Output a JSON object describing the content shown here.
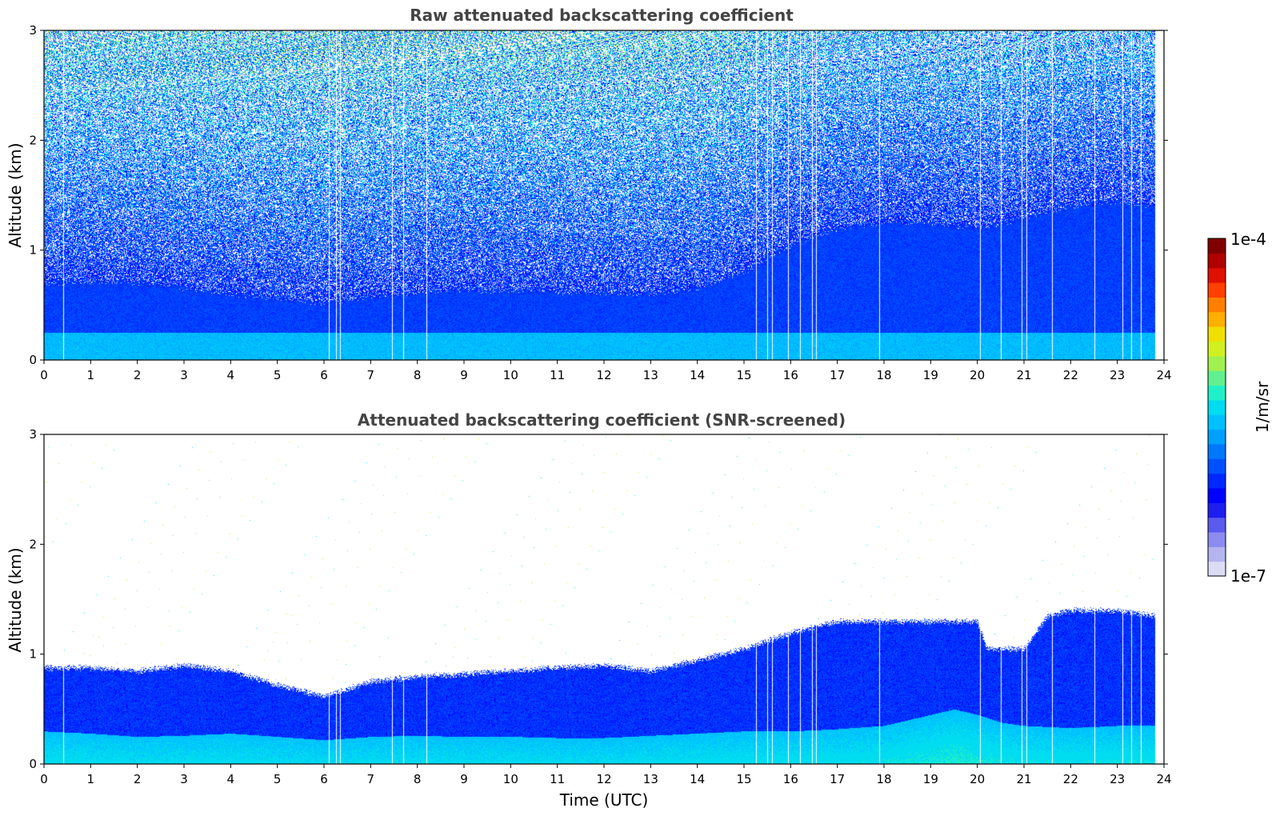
{
  "chart_data": [
    {
      "type": "heatmap",
      "title": "Raw attenuated backscattering coefficient",
      "xlabel": "",
      "ylabel": "Altitude (km)",
      "xlim": [
        0,
        24
      ],
      "ylim": [
        0,
        3
      ],
      "xticks": [
        "0",
        "1",
        "2",
        "3",
        "4",
        "5",
        "6",
        "7",
        "8",
        "9",
        "10",
        "11",
        "12",
        "13",
        "14",
        "15",
        "16",
        "17",
        "18",
        "19",
        "20",
        "21",
        "22",
        "23",
        "24"
      ],
      "yticks": [
        "0",
        "1",
        "2",
        "3"
      ],
      "screened": false,
      "data_end_hour": 23.8,
      "boundary_layer_top_km": {
        "x": [
          0,
          1,
          2,
          3,
          4,
          5,
          6,
          7,
          8,
          9,
          10,
          11,
          12,
          13,
          14,
          15,
          16,
          17,
          18,
          19,
          20,
          21,
          22,
          23,
          23.8
        ],
        "y": [
          0.7,
          0.72,
          0.7,
          0.66,
          0.6,
          0.56,
          0.52,
          0.58,
          0.62,
          0.64,
          0.64,
          0.62,
          0.62,
          0.6,
          0.66,
          0.8,
          1.05,
          1.2,
          1.25,
          1.25,
          1.2,
          1.3,
          1.4,
          1.45,
          1.4
        ]
      },
      "gaps_hours": [
        0.42,
        6.1,
        6.25,
        6.35,
        7.45,
        7.7,
        8.2,
        15.25,
        15.5,
        15.6,
        15.95,
        16.2,
        16.45,
        16.55,
        17.9,
        20.05,
        20.5,
        20.95,
        21.05,
        21.6,
        22.5,
        23.1,
        23.3,
        23.5
      ]
    },
    {
      "type": "heatmap",
      "title": "Attenuated backscattering coefficient (SNR-screened)",
      "xlabel": "Time (UTC)",
      "ylabel": "Altitude (km)",
      "xlim": [
        0,
        24
      ],
      "ylim": [
        0,
        3
      ],
      "xticks": [
        "0",
        "1",
        "2",
        "3",
        "4",
        "5",
        "6",
        "7",
        "8",
        "9",
        "10",
        "11",
        "12",
        "13",
        "14",
        "15",
        "16",
        "17",
        "18",
        "19",
        "20",
        "21",
        "22",
        "23",
        "24"
      ],
      "yticks": [
        "0",
        "1",
        "2",
        "3"
      ],
      "screened": true,
      "data_end_hour": 23.8,
      "layer_top_km": {
        "x": [
          0,
          1,
          2,
          3,
          4,
          5,
          6,
          7,
          8,
          9,
          10,
          11,
          12,
          13,
          14,
          15,
          16,
          17,
          18,
          19,
          20,
          20.2,
          21,
          21.5,
          22,
          23,
          23.8
        ],
        "y": [
          0.88,
          0.88,
          0.85,
          0.9,
          0.85,
          0.72,
          0.62,
          0.75,
          0.8,
          0.82,
          0.85,
          0.88,
          0.9,
          0.85,
          0.95,
          1.05,
          1.2,
          1.3,
          1.3,
          1.3,
          1.3,
          1.05,
          1.05,
          1.35,
          1.4,
          1.4,
          1.35
        ]
      },
      "aerosol_top_km": {
        "x": [
          0,
          1,
          2,
          3,
          4,
          5,
          6,
          7,
          8,
          9,
          10,
          11,
          12,
          13,
          14,
          15,
          16,
          17,
          18,
          19,
          19.5,
          20,
          20.5,
          21,
          22,
          23,
          23.8
        ],
        "y": [
          0.3,
          0.28,
          0.25,
          0.26,
          0.28,
          0.25,
          0.22,
          0.25,
          0.26,
          0.25,
          0.25,
          0.24,
          0.24,
          0.26,
          0.28,
          0.3,
          0.3,
          0.32,
          0.35,
          0.45,
          0.5,
          0.45,
          0.38,
          0.35,
          0.33,
          0.35,
          0.35
        ]
      },
      "gaps_hours": [
        0.42,
        6.1,
        6.25,
        6.35,
        7.45,
        7.7,
        8.2,
        15.25,
        15.5,
        15.6,
        15.95,
        16.2,
        16.45,
        16.55,
        17.9,
        20.05,
        20.5,
        20.95,
        21.05,
        21.6,
        22.5,
        23.1,
        23.3,
        23.5
      ]
    }
  ],
  "colorbar": {
    "max_label": "1e-4",
    "min_label": "1e-7",
    "label": "1/m/sr",
    "colors": [
      "#dcdcf5",
      "#b4b4ef",
      "#8c8cf0",
      "#5a5aee",
      "#1e1ef0",
      "#0000ff",
      "#0028ff",
      "#0050ff",
      "#0078ff",
      "#00a0ff",
      "#00c0ff",
      "#00dcf0",
      "#20f0c8",
      "#60f090",
      "#a0f050",
      "#d0f020",
      "#f0e000",
      "#ffb000",
      "#ff8000",
      "#ff4000",
      "#e01000",
      "#b00000",
      "#800000"
    ]
  },
  "colors": {
    "background": "#ffffff",
    "low": "#0000ff",
    "mid": "#0080ff",
    "high_noise": "#40d0e0"
  }
}
